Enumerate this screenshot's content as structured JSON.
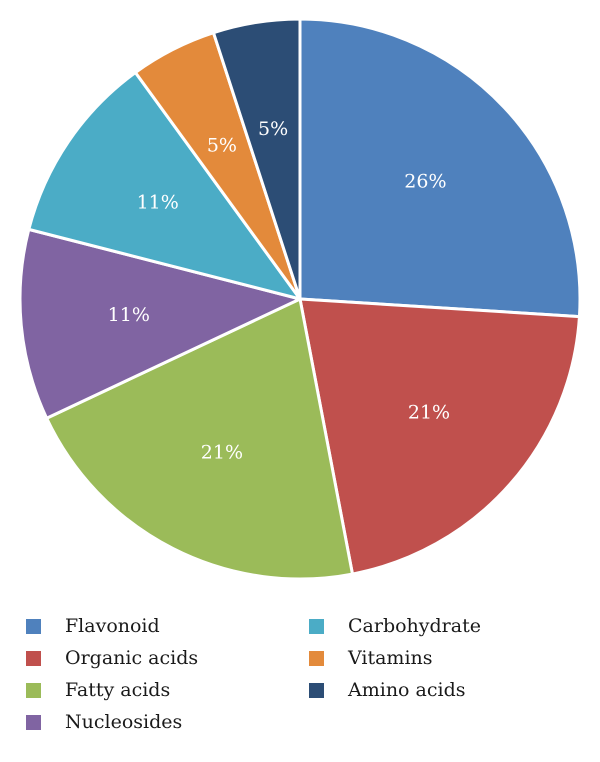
{
  "chart_data": {
    "type": "pie",
    "title": "",
    "legend_placement": "bottom",
    "start_angle_deg": 0,
    "direction": "clockwise",
    "categories": [
      "Flavonoid",
      "Organic acids",
      "Fatty acids",
      "Nucleosides",
      "Carbohydrate",
      "Vitamins",
      "Amino acids"
    ],
    "values": [
      26,
      21,
      21,
      11,
      11,
      5,
      5
    ],
    "labels": [
      "26%",
      "21%",
      "21%",
      "11%",
      "11%",
      "5%",
      "5%"
    ],
    "colors": [
      "#4f81bd",
      "#c0504d",
      "#9bbb59",
      "#8064a2",
      "#4bacc6",
      "#e38a3b",
      "#2c4d75"
    ]
  }
}
